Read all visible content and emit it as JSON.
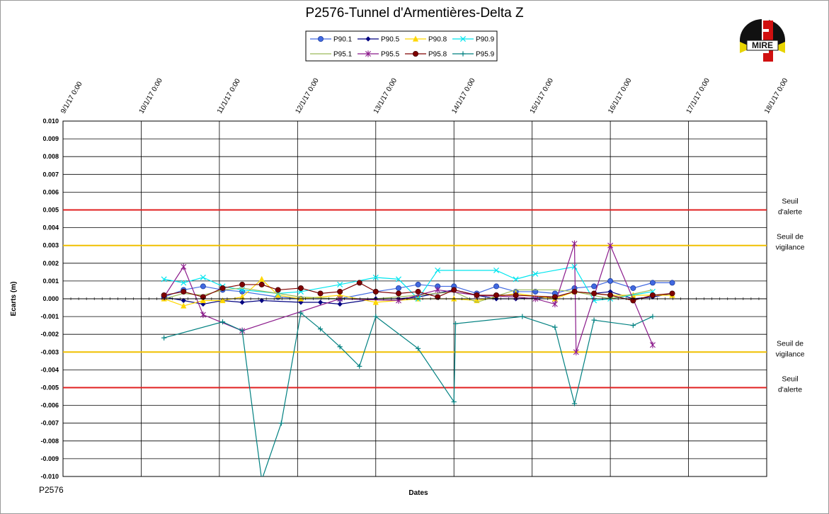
{
  "footer_label": "P2576",
  "logo": {
    "text": "MIRE"
  },
  "chart_data": {
    "type": "line",
    "title": "P2576-Tunnel  d'Armentières-Delta  Z",
    "xlabel": "Dates",
    "ylabel": "Ecarts (m)",
    "ylim": [
      -0.01,
      0.01
    ],
    "xlim": [
      "9/1/17 0:00",
      "18/1/17 0:00"
    ],
    "x_ticks": [
      "9/1/17 0:00",
      "10/1/17 0:00",
      "11/1/17 0:00",
      "12/1/17 0:00",
      "13/1/17 0:00",
      "14/1/17 0:00",
      "15/1/17 0:00",
      "16/1/17 0:00",
      "17/1/17 0:00",
      "18/1/17 0:00"
    ],
    "y_ticks": [
      "0.010",
      "0.009",
      "0.008",
      "0.007",
      "0.006",
      "0.005",
      "0.004",
      "0.003",
      "0.002",
      "0.001",
      "0.000",
      "-0.001",
      "-0.002",
      "-0.003",
      "-0.004",
      "-0.005",
      "-0.006",
      "-0.007",
      "-0.008",
      "-0.009",
      "-0.010"
    ],
    "grid": true,
    "legend_position": "top-center",
    "thresholds": [
      {
        "value": 0.005,
        "color": "#e02020",
        "label_lines": [
          "Seuil",
          "d'alerte"
        ]
      },
      {
        "value": 0.003,
        "color": "#f0c000",
        "label_lines": [
          "Seuil de",
          "vigilance"
        ]
      },
      {
        "value": -0.003,
        "color": "#f0c000",
        "label_lines": [
          "Seuil de",
          "vigilance"
        ]
      },
      {
        "value": -0.005,
        "color": "#e02020",
        "label_lines": [
          "Seuil",
          "d'alerte"
        ]
      }
    ],
    "series": [
      {
        "name": "P90.1",
        "color": "#4169e1",
        "marker": "circle",
        "points": [
          [
            "10/1/17 07:00",
            0.0001
          ],
          [
            "10/1/17 13:00",
            0.0005
          ],
          [
            "10/1/17 19:00",
            0.0007
          ],
          [
            "11/1/17 01:00",
            0.0005
          ],
          [
            "11/1/17 07:00",
            0.0004
          ],
          [
            "11/1/17 18:00",
            0.0001
          ],
          [
            "12/1/17 01:00",
            0.0
          ],
          [
            "12/1/17 13:00",
            0.0
          ],
          [
            "13/1/17 00:00",
            0.0004
          ],
          [
            "13/1/17 07:00",
            0.0006
          ],
          [
            "13/1/17 13:00",
            0.0008
          ],
          [
            "13/1/17 19:00",
            0.0007
          ],
          [
            "14/1/17 00:00",
            0.0007
          ],
          [
            "14/1/17 07:00",
            0.0003
          ],
          [
            "14/1/17 13:00",
            0.0007
          ],
          [
            "14/1/17 19:00",
            0.0004
          ],
          [
            "15/1/17 01:00",
            0.0004
          ],
          [
            "15/1/17 07:00",
            0.0003
          ],
          [
            "15/1/17 13:00",
            0.0006
          ],
          [
            "15/1/17 19:00",
            0.0007
          ],
          [
            "16/1/17 00:00",
            0.001
          ],
          [
            "16/1/17 07:00",
            0.0006
          ],
          [
            "16/1/17 13:00",
            0.0009
          ],
          [
            "16/1/17 19:00",
            0.0009
          ]
        ]
      },
      {
        "name": "P90.5",
        "color": "#000080",
        "marker": "diamond",
        "points": [
          [
            "10/1/17 07:00",
            0.0001
          ],
          [
            "10/1/17 13:00",
            -0.0001
          ],
          [
            "10/1/17 19:00",
            -0.0003
          ],
          [
            "11/1/17 01:00",
            -0.0001
          ],
          [
            "11/1/17 07:00",
            -0.0002
          ],
          [
            "11/1/17 13:00",
            -0.0001
          ],
          [
            "12/1/17 01:00",
            -0.0002
          ],
          [
            "12/1/17 07:00",
            -0.0002
          ],
          [
            "12/1/17 13:00",
            -0.0003
          ],
          [
            "13/1/17 00:00",
            0.0
          ],
          [
            "13/1/17 07:00",
            0.0
          ],
          [
            "13/1/17 13:00",
            0.0001
          ],
          [
            "14/1/17 00:00",
            0.0005
          ],
          [
            "14/1/17 07:00",
            0.0002
          ],
          [
            "14/1/17 13:00",
            0.0
          ],
          [
            "14/1/17 19:00",
            0.0
          ],
          [
            "15/1/17 07:00",
            0.0001
          ],
          [
            "15/1/17 13:00",
            0.0004
          ],
          [
            "15/1/17 19:00",
            0.0003
          ],
          [
            "16/1/17 00:00",
            0.0004
          ],
          [
            "16/1/17 07:00",
            0.0
          ],
          [
            "16/1/17 13:00",
            0.0001
          ],
          [
            "16/1/17 19:00",
            0.0003
          ]
        ]
      },
      {
        "name": "P90.8",
        "color": "#ffd700",
        "marker": "triangle",
        "points": [
          [
            "10/1/17 07:00",
            0.0
          ],
          [
            "10/1/17 13:00",
            -0.0004
          ],
          [
            "10/1/17 19:00",
            -0.0001
          ],
          [
            "11/1/17 01:00",
            -0.0001
          ],
          [
            "11/1/17 07:00",
            0.0001
          ],
          [
            "11/1/17 13:00",
            0.0011
          ],
          [
            "11/1/17 18:00",
            0.0002
          ],
          [
            "12/1/17 01:00",
            0.0
          ],
          [
            "12/1/17 13:00",
            0.0002
          ],
          [
            "13/1/17 00:00",
            -0.0002
          ],
          [
            "13/1/17 13:00",
            0.0
          ],
          [
            "14/1/17 00:00",
            0.0
          ],
          [
            "14/1/17 07:00",
            -0.0001
          ],
          [
            "14/1/17 19:00",
            0.0003
          ],
          [
            "15/1/17 07:00",
            0.0
          ],
          [
            "15/1/17 13:00",
            0.0004
          ],
          [
            "16/1/17 00:00",
            0.0002
          ],
          [
            "16/1/17 07:00",
            0.0002
          ],
          [
            "16/1/17 19:00",
            0.0002
          ]
        ]
      },
      {
        "name": "P90.9",
        "color": "#00e5ee",
        "marker": "x",
        "points": [
          [
            "10/1/17 07:00",
            0.0011
          ],
          [
            "10/1/17 13:00",
            0.0009
          ],
          [
            "10/1/17 19:00",
            0.0012
          ],
          [
            "11/1/17 01:00",
            0.0007
          ],
          [
            "11/1/17 07:00",
            0.0005
          ],
          [
            "11/1/17 18:00",
            0.0003
          ],
          [
            "12/1/17 01:00",
            0.0004
          ],
          [
            "12/1/17 13:00",
            0.0008
          ],
          [
            "13/1/17 00:00",
            0.0012
          ],
          [
            "13/1/17 07:00",
            0.0011
          ],
          [
            "13/1/17 13:00",
            0.0
          ],
          [
            "13/1/17 19:00",
            0.0016
          ],
          [
            "14/1/17 13:00",
            0.0016
          ],
          [
            "14/1/17 19:00",
            0.0011
          ],
          [
            "15/1/17 01:00",
            0.0014
          ],
          [
            "15/1/17 13:00",
            0.0018
          ],
          [
            "15/1/17 19:00",
            -0.0001
          ],
          [
            "16/1/17 00:00",
            0.0
          ],
          [
            "16/1/17 13:00",
            0.0004
          ]
        ]
      },
      {
        "name": "P95.1",
        "color": "#9bbb59",
        "marker": "none",
        "points": [
          [
            "10/1/17 07:00",
            0.0
          ],
          [
            "10/1/17 13:00",
            0.0003
          ],
          [
            "10/1/17 19:00",
            0.0002
          ],
          [
            "11/1/17 01:00",
            0.0005
          ],
          [
            "11/1/17 07:00",
            0.0006
          ],
          [
            "11/1/17 18:00",
            0.0003
          ],
          [
            "12/1/17 01:00",
            0.0001
          ],
          [
            "12/1/17 13:00",
            0.0
          ],
          [
            "13/1/17 00:00",
            0.0
          ],
          [
            "13/1/17 13:00",
            0.0002
          ],
          [
            "14/1/17 00:00",
            0.0004
          ],
          [
            "14/1/17 07:00",
            -0.0002
          ],
          [
            "14/1/17 19:00",
            0.0005
          ],
          [
            "15/1/17 07:00",
            0.0005
          ],
          [
            "15/1/17 13:00",
            0.0004
          ],
          [
            "16/1/17 00:00",
            0.0
          ],
          [
            "16/1/17 13:00",
            0.0005
          ]
        ]
      },
      {
        "name": "P95.5",
        "color": "#8b1a8b",
        "marker": "star",
        "points": [
          [
            "10/1/17 07:00",
            0.0001
          ],
          [
            "10/1/17 13:00",
            0.0018
          ],
          [
            "10/1/17 19:00",
            -0.0009
          ],
          [
            "11/1/17 07:00",
            -0.0018
          ],
          [
            "12/1/17 13:00",
            0.0
          ],
          [
            "13/1/17 07:00",
            -0.0001
          ],
          [
            "13/1/17 19:00",
            0.0005
          ],
          [
            "14/1/17 07:00",
            0.0002
          ],
          [
            "14/1/17 19:00",
            0.0001
          ],
          [
            "15/1/17 01:00",
            0.0
          ],
          [
            "15/1/17 07:00",
            -0.0003
          ],
          [
            "15/1/17 13:00",
            0.0031
          ],
          [
            "15/1/17 13:30",
            -0.003
          ],
          [
            "16/1/17 00:00",
            0.003
          ],
          [
            "16/1/17 13:00",
            -0.0026
          ]
        ]
      },
      {
        "name": "P95.8",
        "color": "#800000",
        "marker": "circle",
        "points": [
          [
            "10/1/17 07:00",
            0.0002
          ],
          [
            "10/1/17 13:00",
            0.0004
          ],
          [
            "10/1/17 19:00",
            0.0001
          ],
          [
            "11/1/17 01:00",
            0.0006
          ],
          [
            "11/1/17 07:00",
            0.0008
          ],
          [
            "11/1/17 13:00",
            0.0008
          ],
          [
            "11/1/17 18:00",
            0.0005
          ],
          [
            "12/1/17 01:00",
            0.0006
          ],
          [
            "12/1/17 07:00",
            0.0003
          ],
          [
            "12/1/17 13:00",
            0.0004
          ],
          [
            "12/1/17 19:00",
            0.0009
          ],
          [
            "13/1/17 00:00",
            0.0004
          ],
          [
            "13/1/17 07:00",
            0.0003
          ],
          [
            "13/1/17 13:00",
            0.0004
          ],
          [
            "13/1/17 19:00",
            0.0001
          ],
          [
            "14/1/17 00:00",
            0.0005
          ],
          [
            "14/1/17 07:00",
            0.0002
          ],
          [
            "14/1/17 13:00",
            0.0002
          ],
          [
            "14/1/17 19:00",
            0.0002
          ],
          [
            "15/1/17 07:00",
            0.0001
          ],
          [
            "15/1/17 13:00",
            0.0004
          ],
          [
            "15/1/17 19:00",
            0.0003
          ],
          [
            "16/1/17 00:00",
            0.0002
          ],
          [
            "16/1/17 07:00",
            -0.0001
          ],
          [
            "16/1/17 13:00",
            0.0002
          ],
          [
            "16/1/17 19:00",
            0.0003
          ]
        ]
      },
      {
        "name": "P95.9",
        "color": "#008080",
        "marker": "plus",
        "points": [
          [
            "10/1/17 07:00",
            -0.0022
          ],
          [
            "11/1/17 01:00",
            -0.0013
          ],
          [
            "11/1/17 07:00",
            -0.0018
          ],
          [
            "11/1/17 13:00",
            -0.0102
          ],
          [
            "11/1/17 19:00",
            -0.007
          ],
          [
            "12/1/17 01:00",
            -0.0008
          ],
          [
            "12/1/17 07:00",
            -0.0017
          ],
          [
            "12/1/17 13:00",
            -0.0027
          ],
          [
            "12/1/17 19:00",
            -0.0038
          ],
          [
            "13/1/17 00:00",
            -0.001
          ],
          [
            "13/1/17 13:00",
            -0.0028
          ],
          [
            "14/1/17 00:00",
            -0.0058
          ],
          [
            "14/1/17 00:30",
            -0.0014
          ],
          [
            "14/1/17 21:00",
            -0.001
          ],
          [
            "15/1/17 07:00",
            -0.0016
          ],
          [
            "15/1/17 13:00",
            -0.0059
          ],
          [
            "15/1/17 19:00",
            -0.0012
          ],
          [
            "16/1/17 07:00",
            -0.0015
          ],
          [
            "16/1/17 13:00",
            -0.001
          ]
        ]
      }
    ]
  }
}
